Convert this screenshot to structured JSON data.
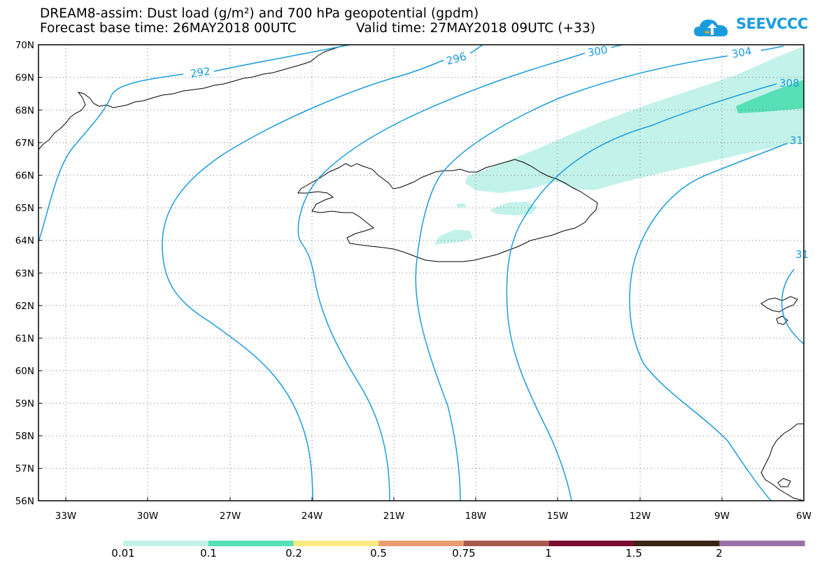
{
  "header": {
    "line1": "DREAM8-assim: Dust load (g/m²) and 700 hPa geopotential (gpdm)",
    "line2_base": "Forecast base time: 26MAY2018 00UTC",
    "line2_valid": "Valid time: 27MAY2018 09UTC (+33)"
  },
  "logo": {
    "text": "SEEVCCC",
    "icon": "cloud-upload-icon",
    "color": "#1a9cdc"
  },
  "map": {
    "lat_labels": [
      "70N",
      "69N",
      "68N",
      "67N",
      "66N",
      "65N",
      "64N",
      "63N",
      "62N",
      "61N",
      "60N",
      "59N",
      "58N",
      "57N",
      "56N"
    ],
    "lon_labels": [
      "33W",
      "30W",
      "27W",
      "24W",
      "21W",
      "18W",
      "15W",
      "12W",
      "9W",
      "6W"
    ],
    "contour_labels": [
      "292",
      "296",
      "300",
      "304",
      "308",
      "31",
      "31"
    ],
    "contour_color": "#1a9cdc"
  },
  "colorbar": {
    "labels": [
      "0.01",
      "0.1",
      "0.2",
      "0.5",
      "0.75",
      "1",
      "1.5",
      "2"
    ],
    "colors": [
      "#c3f2ea",
      "#57dfb6",
      "#f8ea80",
      "#eb9b70",
      "#a85a50",
      "#7a0c30",
      "#3a2414",
      "#9a72a8"
    ]
  }
}
